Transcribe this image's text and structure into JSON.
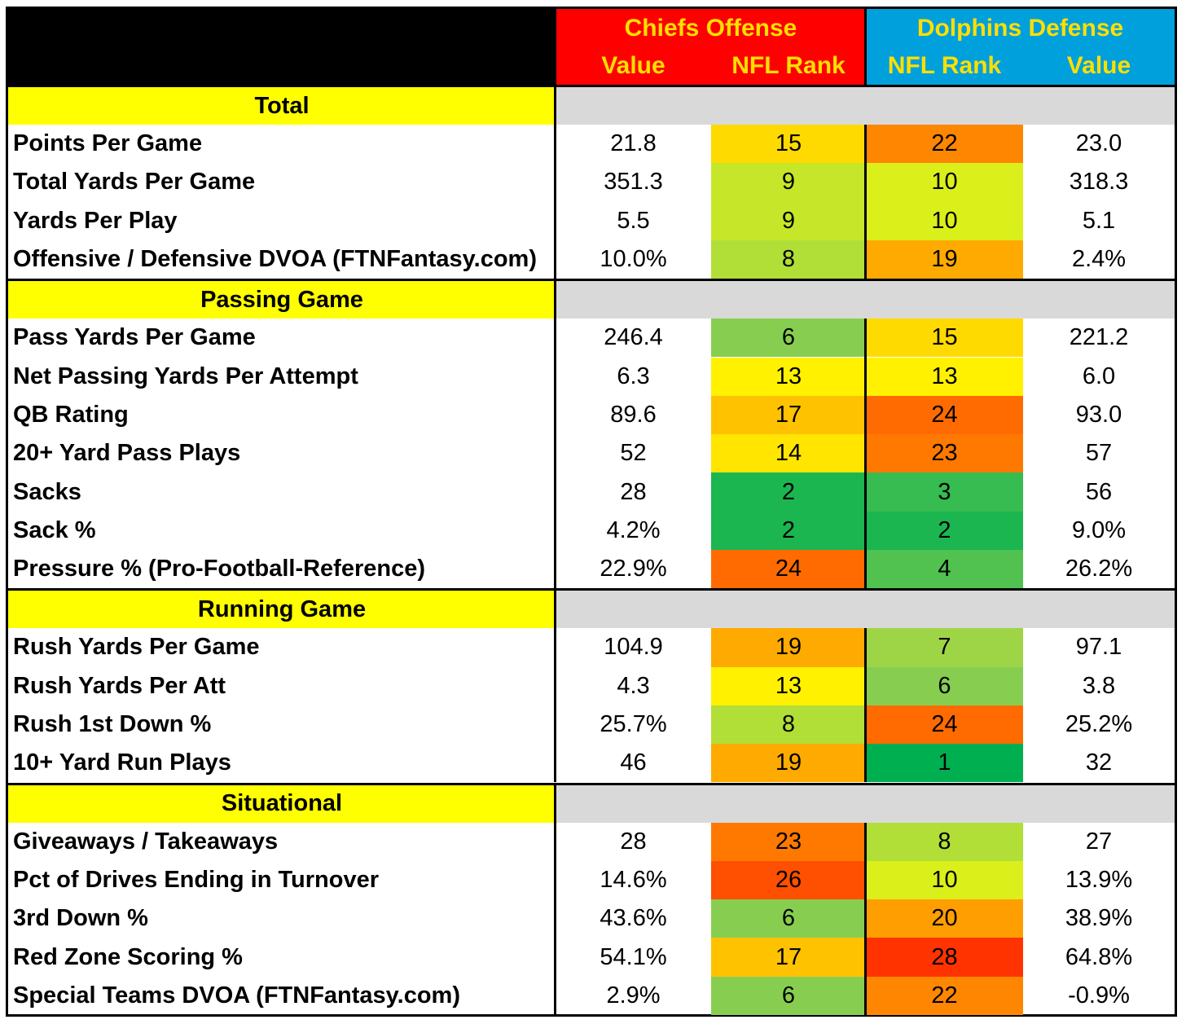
{
  "header": {
    "offense_team": "Chiefs Offense",
    "defense_team": "Dolphins Defense",
    "col_value": "Value",
    "col_rank": "NFL Rank"
  },
  "sections": [
    {
      "title": "Total",
      "rows": [
        {
          "label": "Points Per Game",
          "off_value": "21.8",
          "off_rank": "15",
          "def_rank": "22",
          "def_value": "23.0"
        },
        {
          "label": "Total Yards Per Game",
          "off_value": "351.3",
          "off_rank": "9",
          "def_rank": "10",
          "def_value": "318.3"
        },
        {
          "label": "Yards Per Play",
          "off_value": "5.5",
          "off_rank": "9",
          "def_rank": "10",
          "def_value": "5.1"
        },
        {
          "label": "Offensive / Defensive DVOA (FTNFantasy.com)",
          "off_value": "10.0%",
          "off_rank": "8",
          "def_rank": "19",
          "def_value": "2.4%"
        }
      ]
    },
    {
      "title": "Passing Game",
      "rows": [
        {
          "label": "Pass Yards Per Game",
          "off_value": "246.4",
          "off_rank": "6",
          "def_rank": "15",
          "def_value": "221.2"
        },
        {
          "label": "Net Passing Yards Per Attempt",
          "off_value": "6.3",
          "off_rank": "13",
          "def_rank": "13",
          "def_value": "6.0"
        },
        {
          "label": "QB Rating",
          "off_value": "89.6",
          "off_rank": "17",
          "def_rank": "24",
          "def_value": "93.0"
        },
        {
          "label": "20+ Yard Pass Plays",
          "off_value": "52",
          "off_rank": "14",
          "def_rank": "23",
          "def_value": "57"
        },
        {
          "label": "Sacks",
          "off_value": "28",
          "off_rank": "2",
          "def_rank": "3",
          "def_value": "56"
        },
        {
          "label": "Sack %",
          "off_value": "4.2%",
          "off_rank": "2",
          "def_rank": "2",
          "def_value": "9.0%"
        },
        {
          "label": "Pressure % (Pro-Football-Reference)",
          "off_value": "22.9%",
          "off_rank": "24",
          "def_rank": "4",
          "def_value": "26.2%"
        }
      ]
    },
    {
      "title": "Running Game",
      "rows": [
        {
          "label": "Rush Yards Per Game",
          "off_value": "104.9",
          "off_rank": "19",
          "def_rank": "7",
          "def_value": "97.1"
        },
        {
          "label": "Rush Yards Per Att",
          "off_value": "4.3",
          "off_rank": "13",
          "def_rank": "6",
          "def_value": "3.8"
        },
        {
          "label": "Rush 1st Down %",
          "off_value": "25.7%",
          "off_rank": "8",
          "def_rank": "24",
          "def_value": "25.2%"
        },
        {
          "label": "10+ Yard Run Plays",
          "off_value": "46",
          "off_rank": "19",
          "def_rank": "1",
          "def_value": "32"
        }
      ]
    },
    {
      "title": "Situational",
      "rows": [
        {
          "label": "Giveaways / Takeaways",
          "off_value": "28",
          "off_rank": "23",
          "def_rank": "8",
          "def_value": "27"
        },
        {
          "label": "Pct of Drives Ending in Turnover",
          "off_value": "14.6%",
          "off_rank": "26",
          "def_rank": "10",
          "def_value": "13.9%"
        },
        {
          "label": "3rd Down %",
          "off_value": "43.6%",
          "off_rank": "6",
          "def_rank": "20",
          "def_value": "38.9%"
        },
        {
          "label": "Red Zone Scoring %",
          "off_value": "54.1%",
          "off_rank": "17",
          "def_rank": "28",
          "def_value": "64.8%"
        },
        {
          "label": "Special Teams DVOA  (FTNFantasy.com)",
          "off_value": "2.9%",
          "off_rank": "6",
          "def_rank": "22",
          "def_value": "-0.9%"
        }
      ]
    }
  ],
  "colors": {
    "header_offense": "#ff0000",
    "header_defense": "#00a0dc",
    "header_text": "#ffdf00",
    "section_title": "#ffff00",
    "section_filler": "#d9d9d9",
    "rank_scale": [
      "#00b050",
      "#92d050",
      "#ffff00",
      "#ffc000",
      "#ff7f00",
      "#ff3300"
    ]
  }
}
